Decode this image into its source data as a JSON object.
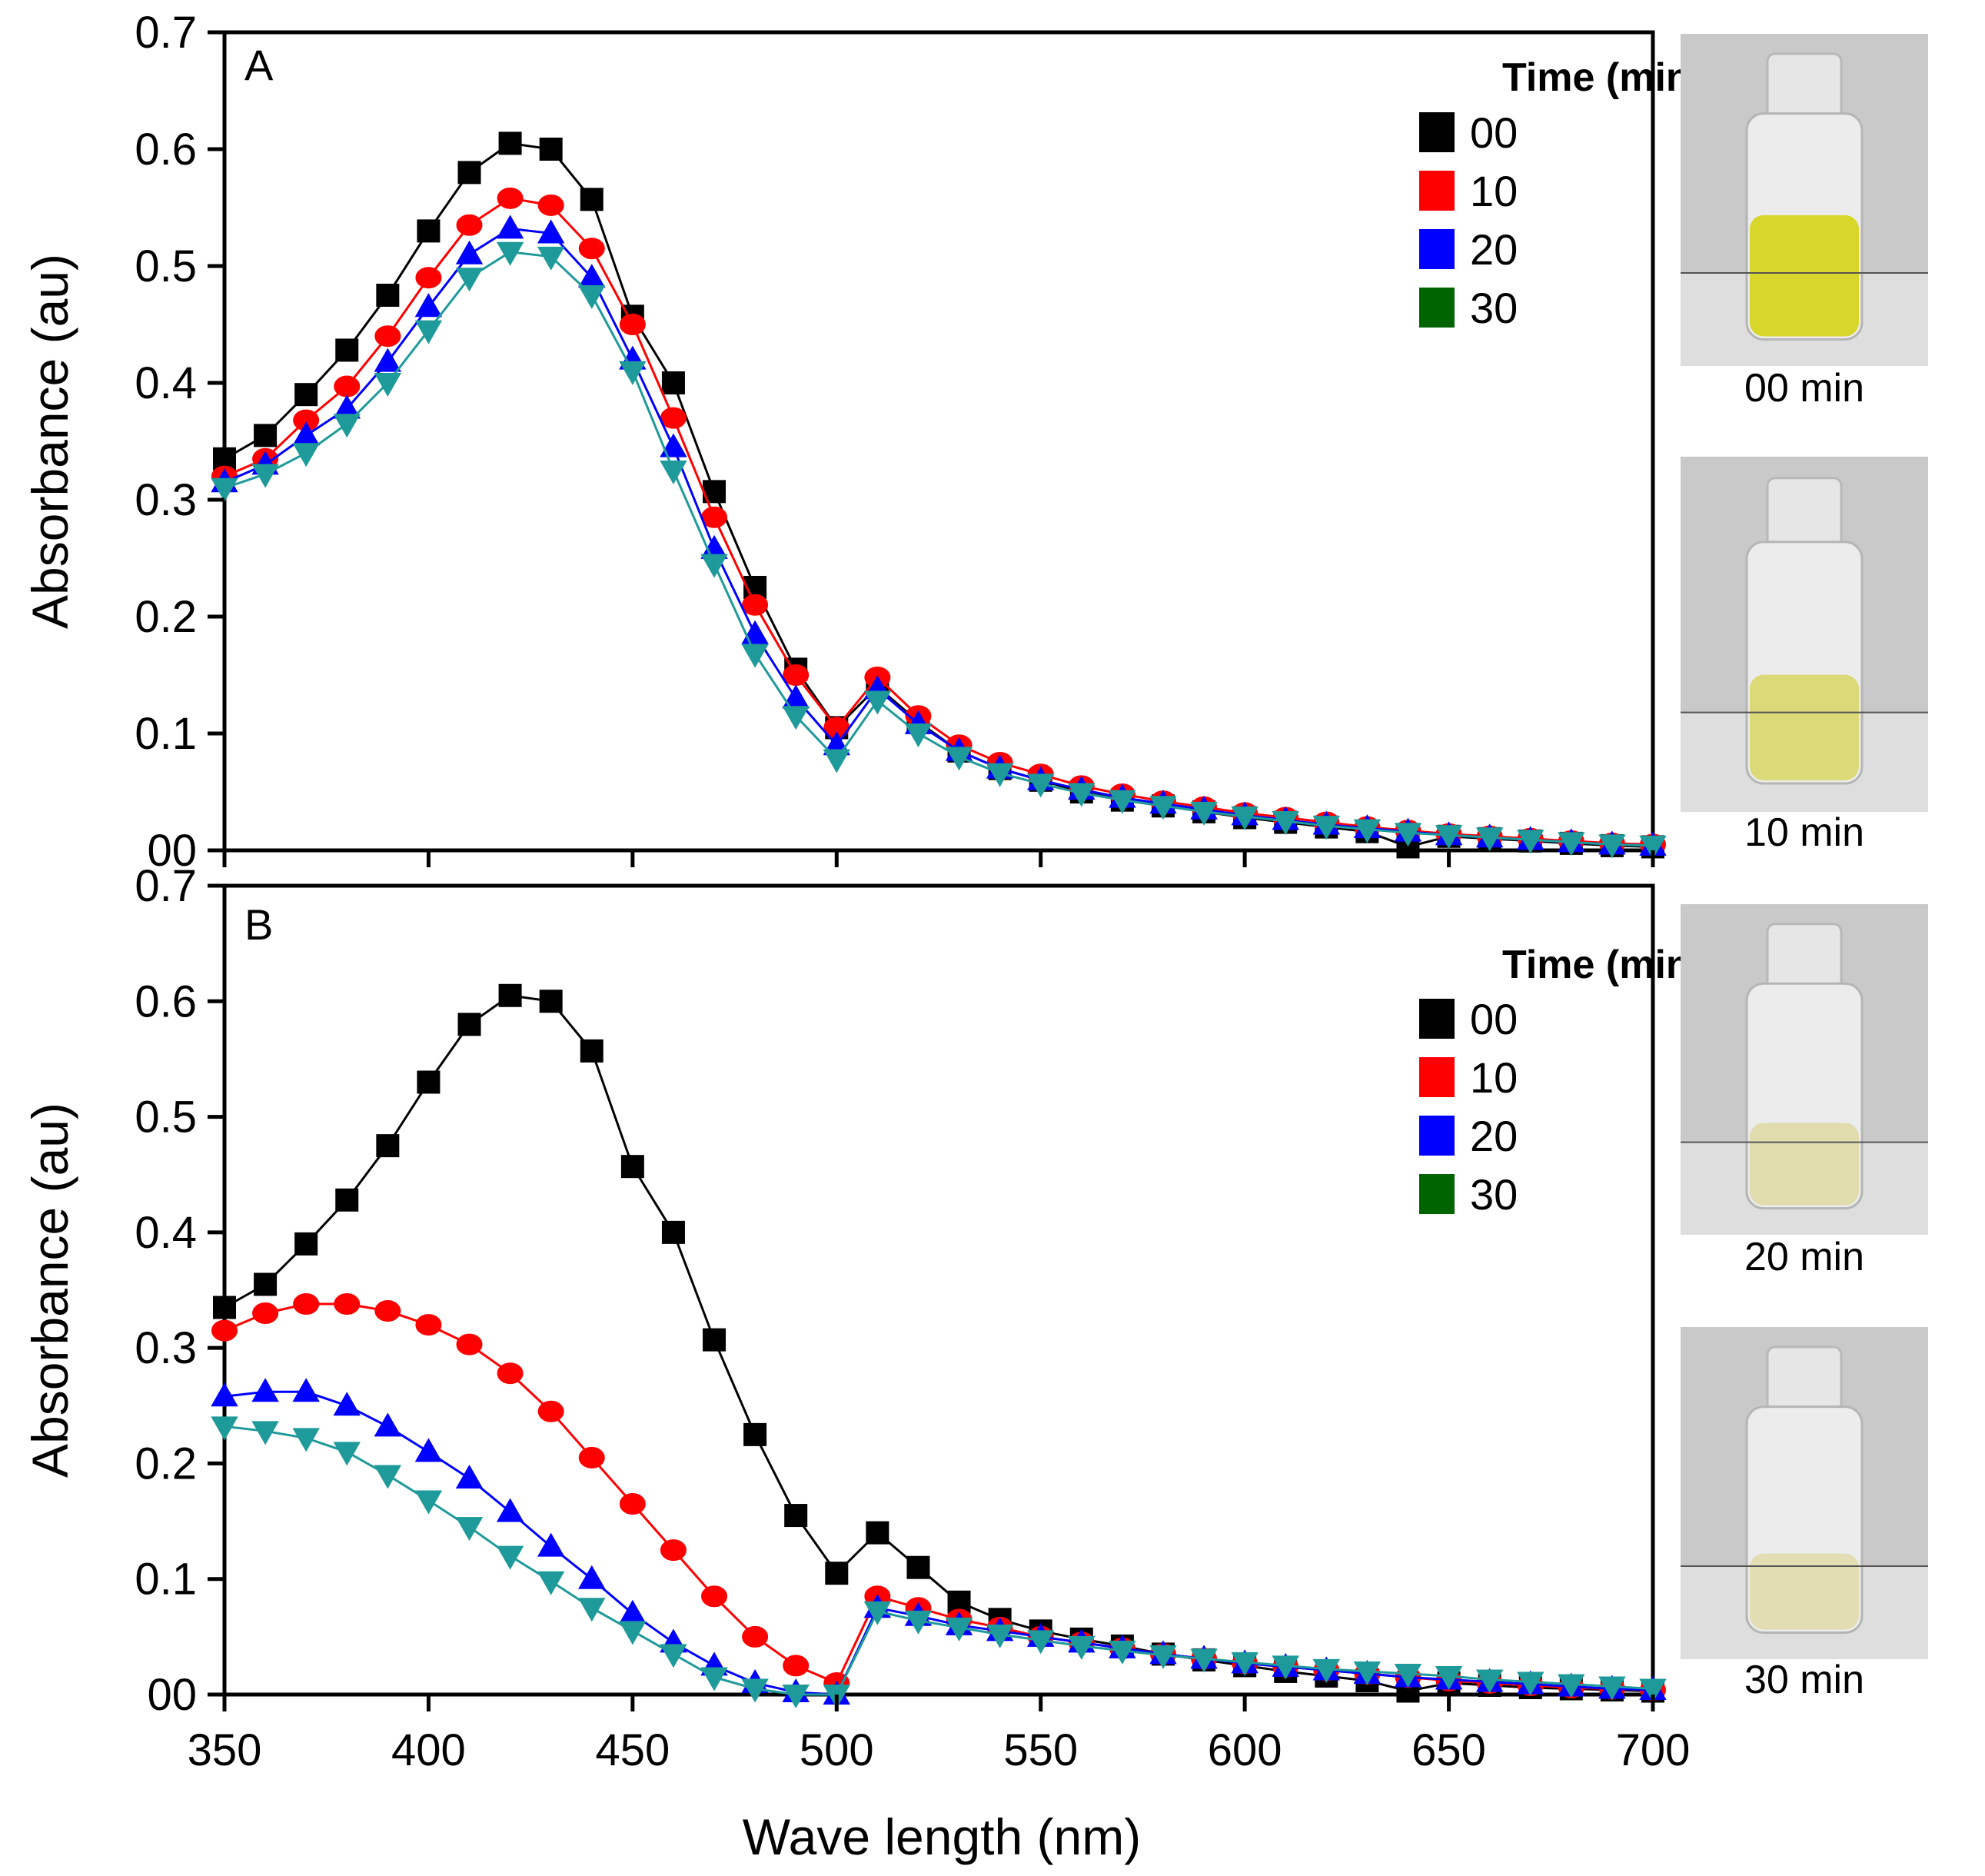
{
  "chart_data": [
    {
      "type": "line",
      "panel_label": "A",
      "xlabel": "",
      "ylabel": "Absorbance (au)",
      "xlim": [
        350,
        700
      ],
      "ylim": [
        0,
        0.7
      ],
      "x_ticks": [
        "350",
        "400",
        "450",
        "500",
        "550",
        "600",
        "650",
        "700"
      ],
      "y_ticks": [
        "00",
        "0.1",
        "0.2",
        "0.3",
        "0.4",
        "0.5",
        "0.6",
        "0.7"
      ],
      "x_tick_labels_shown": false,
      "grid": false,
      "legend": {
        "title": "Time (min)",
        "position": "top-right"
      },
      "x": [
        350,
        360,
        370,
        380,
        390,
        400,
        410,
        420,
        430,
        440,
        450,
        460,
        470,
        480,
        490,
        500,
        510,
        520,
        530,
        540,
        550,
        560,
        570,
        580,
        590,
        600,
        610,
        620,
        630,
        640,
        650,
        660,
        670,
        680,
        690,
        700
      ],
      "series": [
        {
          "name": "00",
          "color": "#000000",
          "marker": "square",
          "values": [
            0.335,
            0.355,
            0.39,
            0.428,
            0.475,
            0.53,
            0.58,
            0.605,
            0.6,
            0.557,
            0.457,
            0.4,
            0.307,
            0.225,
            0.155,
            0.105,
            0.14,
            0.11,
            0.085,
            0.07,
            0.06,
            0.05,
            0.043,
            0.038,
            0.033,
            0.028,
            0.024,
            0.02,
            0.016,
            0.003,
            0.012,
            0.01,
            0.008,
            0.006,
            0.004,
            0.003
          ]
        },
        {
          "name": "10",
          "color": "#ff0000",
          "marker": "circle",
          "values": [
            0.32,
            0.335,
            0.368,
            0.397,
            0.44,
            0.49,
            0.535,
            0.558,
            0.552,
            0.515,
            0.45,
            0.37,
            0.285,
            0.21,
            0.15,
            0.105,
            0.148,
            0.115,
            0.09,
            0.075,
            0.065,
            0.055,
            0.048,
            0.042,
            0.037,
            0.032,
            0.028,
            0.024,
            0.02,
            0.017,
            0.014,
            0.012,
            0.01,
            0.008,
            0.006,
            0.005
          ]
        },
        {
          "name": "20",
          "color": "#0000ff",
          "marker": "triangle-up",
          "values": [
            0.315,
            0.33,
            0.355,
            0.378,
            0.418,
            0.465,
            0.51,
            0.532,
            0.528,
            0.49,
            0.42,
            0.345,
            0.258,
            0.185,
            0.13,
            0.09,
            0.138,
            0.108,
            0.085,
            0.07,
            0.06,
            0.052,
            0.045,
            0.04,
            0.035,
            0.03,
            0.026,
            0.022,
            0.019,
            0.016,
            0.013,
            0.011,
            0.009,
            0.007,
            0.005,
            0.004
          ]
        },
        {
          "name": "30",
          "color": "#006400",
          "marker": "triangle-down",
          "values": [
            0.31,
            0.322,
            0.34,
            0.365,
            0.4,
            0.445,
            0.49,
            0.512,
            0.508,
            0.475,
            0.41,
            0.325,
            0.245,
            0.168,
            0.115,
            0.078,
            0.128,
            0.1,
            0.08,
            0.066,
            0.057,
            0.049,
            0.043,
            0.038,
            0.033,
            0.029,
            0.025,
            0.021,
            0.018,
            0.015,
            0.013,
            0.011,
            0.009,
            0.007,
            0.005,
            0.004
          ]
        }
      ]
    },
    {
      "type": "line",
      "panel_label": "B",
      "xlabel": "Wave length (nm)",
      "ylabel": "Absorbance (au)",
      "xlim": [
        350,
        700
      ],
      "ylim": [
        0,
        0.7
      ],
      "x_ticks": [
        "350",
        "400",
        "450",
        "500",
        "550",
        "600",
        "650",
        "700"
      ],
      "y_ticks": [
        "00",
        "0.1",
        "0.2",
        "0.3",
        "0.4",
        "0.5",
        "0.6",
        "0.7"
      ],
      "x_tick_labels_shown": true,
      "grid": false,
      "legend": {
        "title": "Time (min)",
        "position": "top-right"
      },
      "x": [
        350,
        360,
        370,
        380,
        390,
        400,
        410,
        420,
        430,
        440,
        450,
        460,
        470,
        480,
        490,
        500,
        510,
        520,
        530,
        540,
        550,
        560,
        570,
        580,
        590,
        600,
        610,
        620,
        630,
        640,
        650,
        660,
        670,
        680,
        690,
        700
      ],
      "series": [
        {
          "name": "00",
          "color": "#000000",
          "marker": "square",
          "values": [
            0.335,
            0.355,
            0.39,
            0.428,
            0.475,
            0.53,
            0.58,
            0.605,
            0.6,
            0.557,
            0.457,
            0.4,
            0.307,
            0.225,
            0.155,
            0.105,
            0.14,
            0.11,
            0.08,
            0.065,
            0.055,
            0.048,
            0.042,
            0.035,
            0.03,
            0.025,
            0.02,
            0.016,
            0.012,
            0.003,
            0.01,
            0.008,
            0.006,
            0.005,
            0.004,
            0.003
          ]
        },
        {
          "name": "10",
          "color": "#ff0000",
          "marker": "circle",
          "values": [
            0.315,
            0.33,
            0.338,
            0.338,
            0.332,
            0.32,
            0.303,
            0.278,
            0.245,
            0.205,
            0.165,
            0.125,
            0.085,
            0.05,
            0.025,
            0.01,
            0.085,
            0.075,
            0.065,
            0.058,
            0.05,
            0.045,
            0.04,
            0.035,
            0.031,
            0.027,
            0.024,
            0.021,
            0.018,
            0.015,
            0.012,
            0.01,
            0.008,
            0.006,
            0.005,
            0.004
          ]
        },
        {
          "name": "20",
          "color": "#0000ff",
          "marker": "triangle-up",
          "values": [
            0.258,
            0.262,
            0.262,
            0.25,
            0.232,
            0.21,
            0.187,
            0.158,
            0.128,
            0.1,
            0.07,
            0.045,
            0.025,
            0.01,
            0.002,
            0.0,
            0.075,
            0.068,
            0.06,
            0.055,
            0.05,
            0.045,
            0.04,
            0.035,
            0.031,
            0.027,
            0.024,
            0.021,
            0.018,
            0.015,
            0.013,
            0.011,
            0.009,
            0.007,
            0.005,
            0.004
          ]
        },
        {
          "name": "30",
          "color": "#006400",
          "marker": "triangle-down",
          "values": [
            0.232,
            0.228,
            0.222,
            0.21,
            0.19,
            0.168,
            0.145,
            0.12,
            0.098,
            0.075,
            0.055,
            0.035,
            0.015,
            0.005,
            0.0,
            0.0,
            0.072,
            0.064,
            0.058,
            0.052,
            0.047,
            0.042,
            0.038,
            0.034,
            0.031,
            0.028,
            0.025,
            0.022,
            0.02,
            0.018,
            0.016,
            0.013,
            0.011,
            0.009,
            0.007,
            0.005
          ]
        }
      ]
    }
  ],
  "photos": [
    {
      "caption": "00 min",
      "tint": "#d8d62a",
      "level": 0.55
    },
    {
      "caption": "10 min",
      "tint": "#dcd978",
      "level": 0.45
    },
    {
      "caption": "20 min",
      "tint": "#e0dcae",
      "level": 0.38
    },
    {
      "caption": "30 min",
      "tint": "#e2ddb2",
      "level": 0.35
    }
  ],
  "marker_fill_colors": {
    "30": "#1f9a9a"
  }
}
